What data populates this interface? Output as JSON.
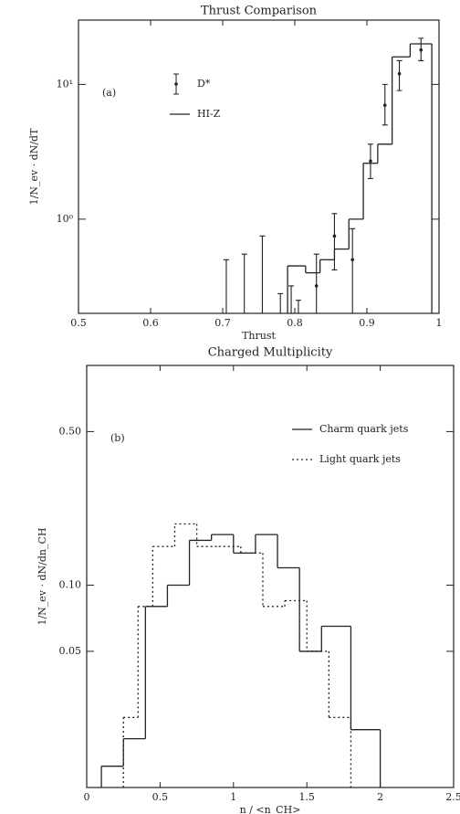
{
  "chart_data": [
    {
      "type": "histogram",
      "title": "Thrust Comparison",
      "xlabel": "Thrust",
      "ylabel": "1/N_ev · dN/dT",
      "annotation": "(a)",
      "log_y": true,
      "legend": "upper left",
      "xlim": [
        0.5,
        1.0
      ],
      "xticks": [
        0.5,
        0.6,
        0.7,
        0.8,
        0.9,
        {
          "value": 1.0,
          "label": "1"
        }
      ],
      "ylim": [
        0.2,
        30
      ],
      "yticks": [
        {
          "value": 1,
          "label": "10⁰"
        },
        {
          "value": 10,
          "label": "10¹"
        }
      ],
      "series": [
        {
          "name": "D*",
          "kind": "points",
          "color": "#222",
          "x": [
            0.705,
            0.73,
            0.755,
            0.78,
            0.795,
            0.805,
            0.83,
            0.855,
            0.88,
            0.905,
            0.925,
            0.945,
            0.975
          ],
          "values": [
            null,
            null,
            null,
            null,
            null,
            null,
            0.32,
            0.75,
            0.5,
            2.7,
            7,
            12,
            18
          ],
          "upper": [
            0.5,
            0.55,
            0.75,
            0.28,
            0.32,
            0.25,
            0.55,
            1.1,
            0.85,
            3.6,
            10,
            15,
            22
          ],
          "lower": [
            0.2,
            0.2,
            0.2,
            0.2,
            0.2,
            0.2,
            0.2,
            0.42,
            0.2,
            2.0,
            5,
            9,
            15
          ]
        },
        {
          "name": "HI-Z",
          "kind": "steps",
          "color": "#222",
          "style": "solid",
          "bins": [
            0.79,
            0.815,
            0.835,
            0.855,
            0.875,
            0.895,
            0.915,
            0.935,
            0.96,
            0.99
          ],
          "values": [
            0.45,
            0.4,
            0.5,
            0.6,
            1.0,
            2.6,
            3.6,
            16,
            20
          ]
        }
      ]
    },
    {
      "type": "histogram",
      "title": "Charged Multiplicity",
      "xlabel": "n / <n_CH>",
      "ylabel": "1/N_ev · dN/dn_CH",
      "annotation": "(b)",
      "log_y": true,
      "legend": "upper right",
      "xlim": [
        0,
        2.5
      ],
      "xticks": [
        0,
        0.5,
        1,
        1.5,
        2,
        2.5
      ],
      "ylim": [
        0.012,
        1
      ],
      "yticks": [
        0.05,
        {
          "value": 0.1,
          "label": "0.10"
        },
        {
          "value": 0.5,
          "label": "0.50"
        }
      ],
      "series": [
        {
          "name": "Charm quark jets",
          "kind": "steps",
          "color": "#222",
          "style": "solid",
          "bins": [
            0.1,
            0.25,
            0.4,
            0.55,
            0.7,
            0.85,
            1.0,
            1.15,
            1.3,
            1.45,
            1.6,
            1.8,
            2.0
          ],
          "values": [
            0.015,
            0.02,
            0.08,
            0.1,
            0.16,
            0.17,
            0.14,
            0.17,
            0.12,
            0.05,
            0.065,
            0.022
          ]
        },
        {
          "name": "Light quark jets",
          "kind": "steps",
          "color": "#222",
          "style": "dotted",
          "bins": [
            0.25,
            0.35,
            0.45,
            0.6,
            0.75,
            0.9,
            1.05,
            1.2,
            1.35,
            1.5,
            1.65,
            1.8
          ],
          "values": [
            0.025,
            0.08,
            0.15,
            0.19,
            0.15,
            0.15,
            0.14,
            0.08,
            0.085,
            0.05,
            0.025
          ]
        }
      ]
    }
  ]
}
